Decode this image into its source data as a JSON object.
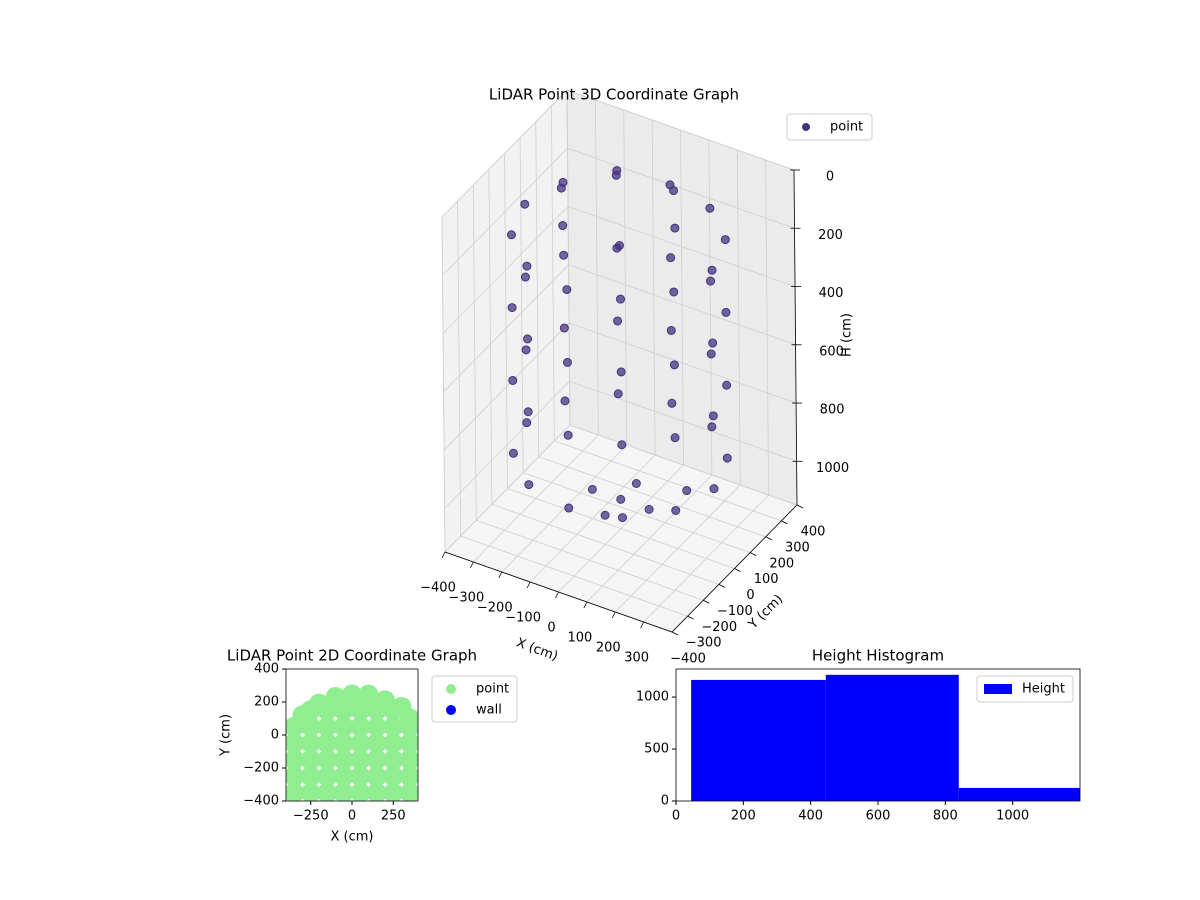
{
  "chart_data": [
    {
      "type": "scatter3d",
      "title": "LiDAR Point 3D Coordinate Graph",
      "xlabel": "X (cm)",
      "ylabel": "Y (cm)",
      "zlabel": "H (cm)",
      "xlim": [
        -400,
        400
      ],
      "ylim": [
        -400,
        400
      ],
      "zlim": [
        1150,
        0
      ],
      "xticks": [
        {
          "value": -400,
          "label": "−400"
        },
        {
          "value": -300,
          "label": "−300"
        },
        {
          "value": -200,
          "label": "−200"
        },
        {
          "value": -100,
          "label": "−100"
        },
        0,
        100,
        200,
        300
      ],
      "yticks": [
        {
          "value": -400,
          "label": "−400"
        },
        {
          "value": -300,
          "label": "−300"
        },
        {
          "value": -200,
          "label": "−200"
        },
        {
          "value": -100,
          "label": "−100"
        },
        0,
        100,
        200,
        300,
        400
      ],
      "zticks": [
        0,
        200,
        400,
        600,
        800,
        1000
      ],
      "grid": true,
      "legend": "upper right",
      "series": [
        {
          "name": "point",
          "color": "#46337e",
          "x": [
            330,
            286,
            165,
            0,
            -165,
            -286,
            -330,
            -286,
            -165,
            0,
            165,
            286,
            330,
            286,
            165,
            0,
            -165,
            -286,
            -330,
            -286,
            -165,
            0,
            165,
            286,
            330,
            286,
            165,
            0,
            -165,
            -286,
            -330,
            -286,
            -165,
            0,
            165,
            286,
            330,
            286,
            165,
            0,
            -165,
            -286,
            -330,
            -286,
            -165,
            0,
            165,
            286,
            200,
            100,
            -100,
            -200,
            -100,
            100,
            0,
            100,
            0,
            -100,
            0,
            150
          ],
          "y": [
            0,
            165,
            286,
            330,
            286,
            165,
            0,
            -165,
            -286,
            -330,
            -286,
            -165,
            0,
            165,
            286,
            330,
            286,
            165,
            0,
            -165,
            -286,
            -330,
            -286,
            -165,
            0,
            165,
            286,
            330,
            286,
            165,
            0,
            -165,
            -286,
            -330,
            -286,
            -165,
            0,
            165,
            286,
            330,
            286,
            165,
            0,
            -165,
            -286,
            -330,
            -286,
            -165,
            0,
            173,
            173,
            0,
            -173,
            -173,
            0,
            0,
            100,
            0,
            -100,
            150
          ],
          "z": [
            150,
            150,
            150,
            150,
            150,
            150,
            150,
            150,
            150,
            150,
            150,
            150,
            400,
            400,
            400,
            400,
            400,
            400,
            400,
            400,
            400,
            400,
            400,
            400,
            650,
            650,
            650,
            650,
            650,
            650,
            650,
            650,
            650,
            650,
            650,
            650,
            900,
            900,
            900,
            900,
            900,
            900,
            900,
            900,
            900,
            900,
            900,
            900,
            50,
            50,
            50,
            50,
            50,
            50,
            1050,
            1050,
            1050,
            1050,
            1050,
            1050
          ]
        }
      ]
    },
    {
      "type": "scatter",
      "title": "LiDAR Point 2D Coordinate Graph",
      "xlabel": "X (cm)",
      "ylabel": "Y (cm)",
      "xlim": [
        -400,
        400
      ],
      "ylim": [
        -400,
        400
      ],
      "xticks": [
        {
          "value": -250,
          "label": "−250"
        },
        0,
        250
      ],
      "yticks": [
        {
          "value": -400,
          "label": "−400"
        },
        {
          "value": -200,
          "label": "−200"
        },
        0,
        200,
        400
      ],
      "legend": "outside right",
      "series": [
        {
          "name": "point",
          "color": "#90ee90",
          "x": [
            -350,
            -250,
            -150,
            -50,
            50,
            150,
            250,
            350,
            -350,
            -250,
            -150,
            -50,
            50,
            150,
            250,
            350,
            -350,
            -250,
            -150,
            -50,
            50,
            150,
            250,
            350,
            -350,
            -250,
            -150,
            -50,
            50,
            150,
            250,
            350,
            -350,
            -250,
            -150,
            -50,
            50,
            150,
            250,
            350,
            -250,
            -150,
            -50,
            50,
            150,
            250,
            -300,
            -200,
            -100,
            0,
            100,
            200,
            300,
            350
          ],
          "y": [
            -350,
            -350,
            -350,
            -350,
            -350,
            -350,
            -350,
            -350,
            -250,
            -250,
            -250,
            -250,
            -250,
            -250,
            -250,
            -250,
            -150,
            -150,
            -150,
            -150,
            -150,
            -150,
            -150,
            -150,
            -50,
            -50,
            -50,
            -50,
            -50,
            -50,
            -50,
            -50,
            50,
            50,
            50,
            50,
            50,
            50,
            50,
            50,
            150,
            150,
            150,
            150,
            150,
            150,
            120,
            190,
            230,
            245,
            245,
            210,
            170,
            100
          ]
        },
        {
          "name": "wall",
          "color": "#0000ff",
          "x": [],
          "y": []
        }
      ]
    },
    {
      "type": "histogram",
      "title": "Height Histogram",
      "xlim": [
        0,
        1200
      ],
      "ylim": [
        0,
        1270
      ],
      "xticks": [
        0,
        200,
        400,
        600,
        800,
        1000
      ],
      "yticks": [
        0,
        500,
        1000
      ],
      "legend": "upper right",
      "series": [
        {
          "name": "Height",
          "color": "#0000ff",
          "bins": [
            45,
            445,
            840,
            1200
          ],
          "values": [
            1165,
            1214,
            126
          ]
        }
      ]
    }
  ]
}
